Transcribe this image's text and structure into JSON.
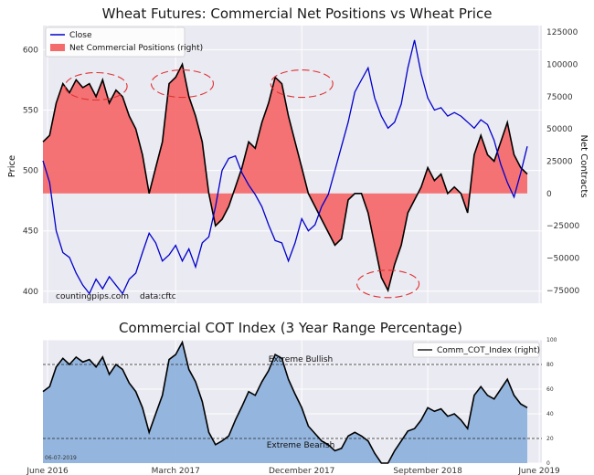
{
  "chart_data": [
    {
      "type": "line",
      "title": "Wheat Futures: Commercial Net Positions vs Wheat Price",
      "ylabel": "Price",
      "y2label": "Net Contracts",
      "ylim": [
        390,
        620
      ],
      "y2lim": [
        -85000,
        130000
      ],
      "yticks": [
        400,
        450,
        500,
        550,
        600
      ],
      "y2ticks": [
        -75000,
        -50000,
        -25000,
        0,
        25000,
        50000,
        75000,
        100000,
        125000
      ],
      "y2tick_labels": [
        "−75000",
        "−50000",
        "−25000",
        "0",
        "25000",
        "50000",
        "75000",
        "100000",
        "125000"
      ],
      "xlim": [
        0,
        37.6
      ],
      "legend_position": "upper-left",
      "grid": true,
      "source_note": "countingpips.com",
      "data_note": "data:cftc",
      "series": [
        {
          "name": "Close",
          "axis": "left",
          "color": "#0000cc",
          "x": [
            0,
            0.5,
            1,
            1.5,
            2,
            2.5,
            3,
            3.5,
            4,
            4.5,
            5,
            5.5,
            6,
            6.5,
            7,
            7.5,
            8,
            8.5,
            9,
            9.5,
            10,
            10.5,
            11,
            11.5,
            12,
            12.5,
            13,
            13.5,
            14,
            14.5,
            15,
            15.5,
            16,
            16.5,
            17,
            17.5,
            18,
            18.5,
            19,
            19.5,
            20,
            20.5,
            21,
            21.5,
            22,
            22.5,
            23,
            23.5,
            24,
            24.5,
            25,
            25.5,
            26,
            26.5,
            27,
            27.5,
            28,
            28.5,
            29,
            29.5,
            30,
            30.5,
            31,
            31.5,
            32,
            32.5,
            33,
            33.5,
            34,
            34.5,
            35,
            35.5,
            36,
            36.5
          ],
          "values": [
            508,
            490,
            450,
            432,
            428,
            415,
            405,
            398,
            410,
            402,
            412,
            405,
            398,
            410,
            415,
            432,
            448,
            440,
            425,
            430,
            438,
            425,
            435,
            420,
            440,
            445,
            470,
            500,
            510,
            512,
            498,
            488,
            480,
            470,
            455,
            442,
            440,
            425,
            440,
            460,
            450,
            455,
            470,
            480,
            500,
            520,
            540,
            565,
            575,
            585,
            560,
            545,
            535,
            540,
            555,
            585,
            608,
            580,
            560,
            550,
            552,
            545,
            548,
            545,
            540,
            535,
            542,
            538,
            525,
            505,
            490,
            478,
            498,
            520
          ]
        },
        {
          "name": "Net Commercial Positions (right)",
          "axis": "right",
          "color": "#000000",
          "fill_color": "#f46b6b",
          "x": [
            0,
            0.5,
            1,
            1.5,
            2,
            2.5,
            3,
            3.5,
            4,
            4.5,
            5,
            5.5,
            6,
            6.5,
            7,
            7.5,
            8,
            8.5,
            9,
            9.5,
            10,
            10.5,
            11,
            11.5,
            12,
            12.5,
            13,
            13.5,
            14,
            14.5,
            15,
            15.5,
            16,
            16.5,
            17,
            17.5,
            18,
            18.5,
            19,
            19.5,
            20,
            20.5,
            21,
            21.5,
            22,
            22.5,
            23,
            23.5,
            24,
            24.5,
            25,
            25.5,
            26,
            26.5,
            27,
            27.5,
            28,
            28.5,
            29,
            29.5,
            30,
            30.5,
            31,
            31.5,
            32,
            32.5,
            33,
            33.5,
            34,
            34.5,
            35,
            35.5,
            36,
            36.5
          ],
          "values": [
            40000,
            45000,
            70000,
            85000,
            78000,
            88000,
            82000,
            85000,
            75000,
            88000,
            70000,
            80000,
            75000,
            60000,
            50000,
            30000,
            0,
            20000,
            40000,
            85000,
            90000,
            100000,
            75000,
            60000,
            40000,
            0,
            -25000,
            -20000,
            -10000,
            5000,
            20000,
            40000,
            35000,
            55000,
            70000,
            90000,
            85000,
            60000,
            40000,
            20000,
            0,
            -10000,
            -20000,
            -30000,
            -40000,
            -35000,
            -5000,
            0,
            0,
            -15000,
            -40000,
            -65000,
            -75000,
            -55000,
            -40000,
            -15000,
            -5000,
            5000,
            20000,
            10000,
            15000,
            0,
            5000,
            0,
            -15000,
            30000,
            45000,
            30000,
            25000,
            40000,
            55000,
            30000,
            20000,
            15000
          ]
        }
      ],
      "annotations": [
        {
          "label": "peak-circle",
          "x": 4.0,
          "y": 83000
        },
        {
          "label": "peak-circle",
          "x": 10.5,
          "y": 85000
        },
        {
          "label": "peak-circle",
          "x": 19.5,
          "y": 85000
        },
        {
          "label": "trough-circle",
          "x": 26.0,
          "y": -70000
        }
      ]
    },
    {
      "type": "area",
      "title": "Commercial COT Index (3 Year Range Percentage)",
      "ylim": [
        0,
        100
      ],
      "y2ticks": [
        0,
        20,
        40,
        60,
        80,
        100
      ],
      "xlim": [
        0,
        37.6
      ],
      "xtick_positions": [
        0.35,
        10,
        19.5,
        29,
        37.4
      ],
      "xtick_labels": [
        "June 2016",
        "March 2017",
        "December 2017",
        "September 2018",
        "June 2019"
      ],
      "legend_position": "upper-right",
      "grid": true,
      "date_note": "06-07-2019",
      "reference_lines": [
        {
          "value": 80,
          "label": "Extreme Bullish"
        },
        {
          "value": 20,
          "label": "Extreme Bearish"
        }
      ],
      "series": [
        {
          "name": "Comm_COT_Index (right)",
          "color": "#000000",
          "fill_color": "#8fb2dc",
          "x": [
            0,
            0.5,
            1,
            1.5,
            2,
            2.5,
            3,
            3.5,
            4,
            4.5,
            5,
            5.5,
            6,
            6.5,
            7,
            7.5,
            8,
            8.5,
            9,
            9.5,
            10,
            10.5,
            11,
            11.5,
            12,
            12.5,
            13,
            13.5,
            14,
            14.5,
            15,
            15.5,
            16,
            16.5,
            17,
            17.5,
            18,
            18.5,
            19,
            19.5,
            20,
            20.5,
            21,
            21.5,
            22,
            22.5,
            23,
            23.5,
            24,
            24.5,
            25,
            25.5,
            26,
            26.5,
            27,
            27.5,
            28,
            28.5,
            29,
            29.5,
            30,
            30.5,
            31,
            31.5,
            32,
            32.5,
            33,
            33.5,
            34,
            34.5,
            35,
            35.5,
            36,
            36.5
          ],
          "values": [
            58,
            62,
            78,
            85,
            80,
            86,
            82,
            84,
            78,
            86,
            72,
            80,
            76,
            65,
            58,
            45,
            25,
            40,
            55,
            84,
            88,
            98,
            76,
            66,
            50,
            25,
            15,
            18,
            22,
            35,
            46,
            58,
            55,
            66,
            75,
            88,
            85,
            68,
            56,
            45,
            30,
            24,
            18,
            15,
            10,
            12,
            22,
            25,
            22,
            18,
            8,
            0,
            0,
            10,
            18,
            26,
            28,
            35,
            45,
            42,
            44,
            38,
            40,
            35,
            28,
            55,
            62,
            55,
            52,
            60,
            68,
            55,
            48,
            45
          ]
        }
      ]
    }
  ]
}
